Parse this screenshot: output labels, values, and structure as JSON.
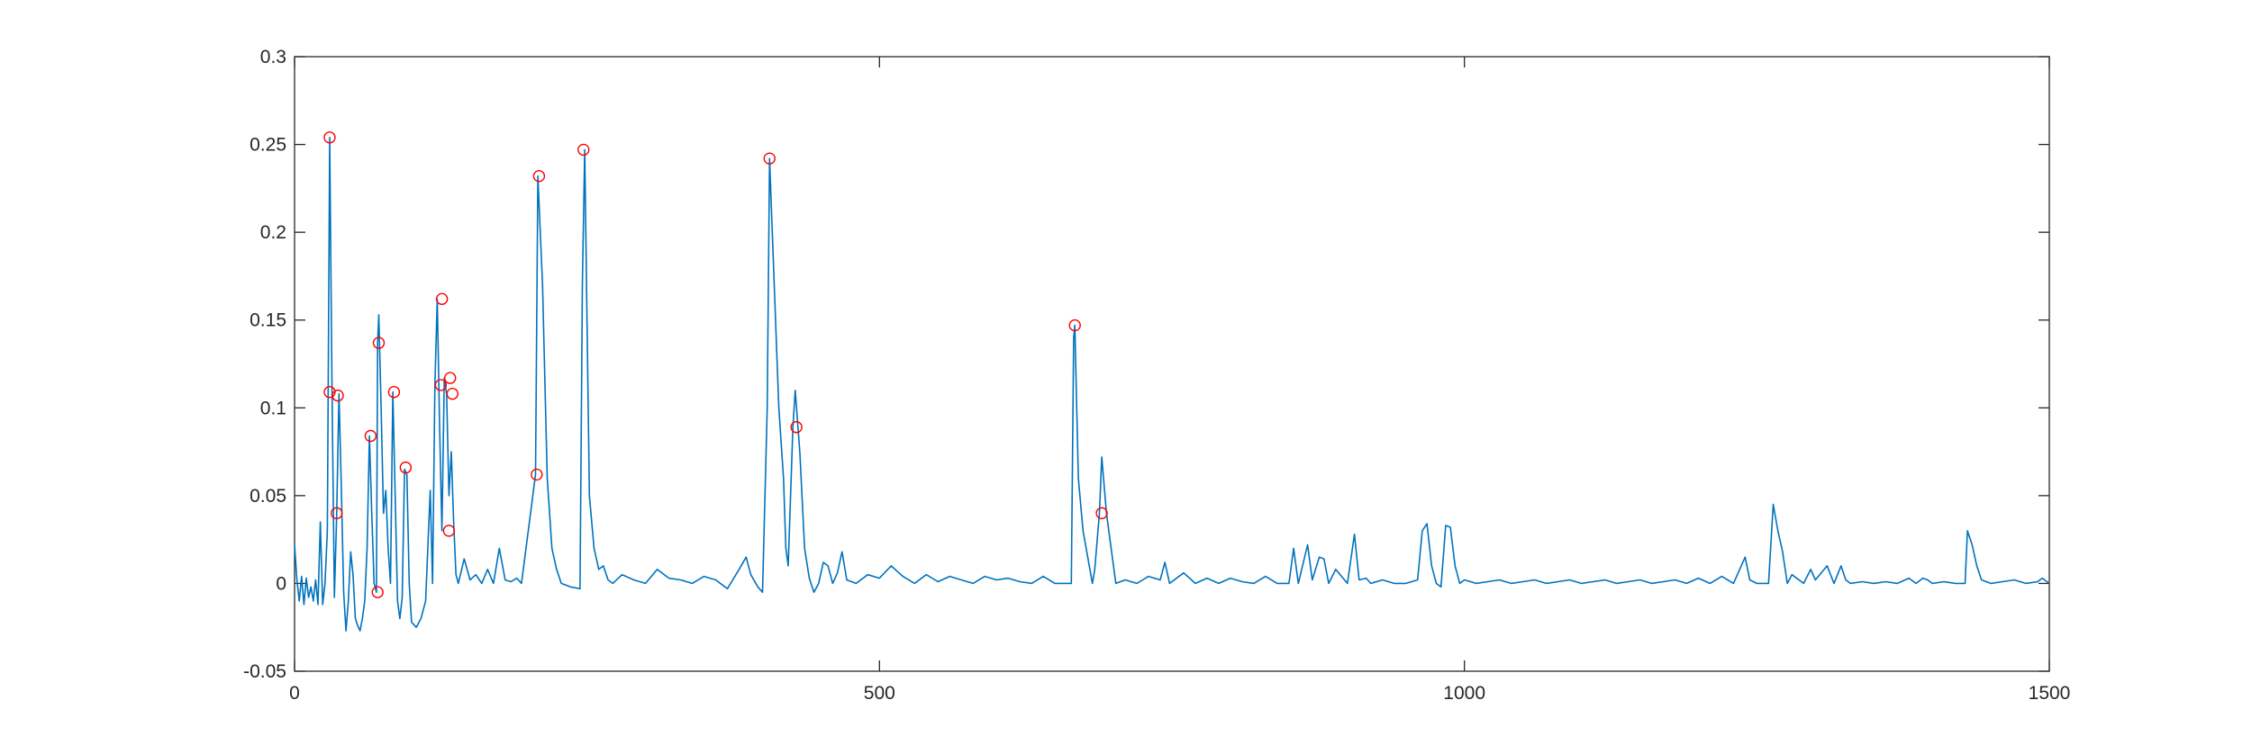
{
  "chart_data": {
    "type": "line",
    "title": "",
    "xlabel": "",
    "ylabel": "",
    "xlim": [
      0,
      1500
    ],
    "ylim": [
      -0.05,
      0.3
    ],
    "grid": false,
    "line_color": "#0072BD",
    "marker_color": "#FF0000",
    "x_ticks": [
      0,
      500,
      1000,
      1500
    ],
    "x_tick_labels": [
      "0",
      "500",
      "1000",
      "1500"
    ],
    "y_ticks": [
      -0.05,
      0,
      0.05,
      0.1,
      0.15,
      0.2,
      0.25,
      0.3
    ],
    "y_tick_labels": [
      "-0.05",
      "0",
      "0.05",
      "0.1",
      "0.15",
      "0.2",
      "0.25",
      "0.3"
    ],
    "series": [
      {
        "values": [
          [
            0,
            0.022
          ],
          [
            2,
            0.002
          ],
          [
            4,
            -0.01
          ],
          [
            6,
            0.004
          ],
          [
            8,
            -0.012
          ],
          [
            10,
            0.003
          ],
          [
            12,
            -0.008
          ],
          [
            14,
            -0.002
          ],
          [
            16,
            -0.01
          ],
          [
            18,
            0.002
          ],
          [
            20,
            -0.012
          ],
          [
            22,
            0.035
          ],
          [
            24,
            -0.012
          ],
          [
            26,
            0.0
          ],
          [
            28,
            0.03
          ],
          [
            30,
            0.254
          ],
          [
            32,
            0.11
          ],
          [
            34,
            -0.008
          ],
          [
            36,
            0.04
          ],
          [
            38,
            0.108
          ],
          [
            40,
            0.055
          ],
          [
            42,
            -0.005
          ],
          [
            44,
            -0.027
          ],
          [
            46,
            -0.01
          ],
          [
            48,
            0.018
          ],
          [
            50,
            0.005
          ],
          [
            52,
            -0.02
          ],
          [
            54,
            -0.024
          ],
          [
            56,
            -0.027
          ],
          [
            58,
            -0.02
          ],
          [
            60,
            -0.01
          ],
          [
            62,
            0.02
          ],
          [
            64,
            0.084
          ],
          [
            66,
            0.04
          ],
          [
            68,
            0.0
          ],
          [
            70,
            -0.005
          ],
          [
            71,
            0.137
          ],
          [
            72,
            0.153
          ],
          [
            74,
            0.1
          ],
          [
            76,
            0.04
          ],
          [
            78,
            0.053
          ],
          [
            80,
            0.02
          ],
          [
            82,
            0.0
          ],
          [
            84,
            0.109
          ],
          [
            86,
            0.05
          ],
          [
            88,
            -0.01
          ],
          [
            90,
            -0.02
          ],
          [
            92,
            -0.008
          ],
          [
            94,
            0.065
          ],
          [
            96,
            0.062
          ],
          [
            98,
            0.0
          ],
          [
            100,
            -0.022
          ],
          [
            104,
            -0.025
          ],
          [
            108,
            -0.02
          ],
          [
            112,
            -0.01
          ],
          [
            116,
            0.053
          ],
          [
            118,
            0.0
          ],
          [
            120,
            0.113
          ],
          [
            122,
            0.162
          ],
          [
            124,
            0.09
          ],
          [
            126,
            0.03
          ],
          [
            128,
            0.117
          ],
          [
            130,
            0.108
          ],
          [
            132,
            0.05
          ],
          [
            134,
            0.075
          ],
          [
            136,
            0.035
          ],
          [
            138,
            0.005
          ],
          [
            140,
            0.0
          ],
          [
            145,
            0.014
          ],
          [
            150,
            0.002
          ],
          [
            155,
            0.005
          ],
          [
            160,
            0.0
          ],
          [
            165,
            0.008
          ],
          [
            170,
            0.0
          ],
          [
            175,
            0.02
          ],
          [
            180,
            0.002
          ],
          [
            185,
            0.001
          ],
          [
            190,
            0.003
          ],
          [
            194,
            0.0
          ],
          [
            206,
            0.062
          ],
          [
            208,
            0.232
          ],
          [
            212,
            0.17
          ],
          [
            216,
            0.06
          ],
          [
            220,
            0.02
          ],
          [
            224,
            0.008
          ],
          [
            228,
            0.0
          ],
          [
            236,
            -0.002
          ],
          [
            244,
            -0.003
          ],
          [
            246,
            0.17
          ],
          [
            248,
            0.247
          ],
          [
            252,
            0.05
          ],
          [
            256,
            0.02
          ],
          [
            260,
            0.008
          ],
          [
            264,
            0.01
          ],
          [
            268,
            0.002
          ],
          [
            272,
            0.0
          ],
          [
            280,
            0.005
          ],
          [
            290,
            0.002
          ],
          [
            300,
            0.0
          ],
          [
            310,
            0.008
          ],
          [
            320,
            0.003
          ],
          [
            330,
            0.002
          ],
          [
            340,
            0.0
          ],
          [
            350,
            0.004
          ],
          [
            360,
            0.002
          ],
          [
            370,
            -0.003
          ],
          [
            380,
            0.008
          ],
          [
            386,
            0.015
          ],
          [
            390,
            0.005
          ],
          [
            396,
            -0.002
          ],
          [
            400,
            -0.005
          ],
          [
            404,
            0.1
          ],
          [
            406,
            0.242
          ],
          [
            410,
            0.17
          ],
          [
            414,
            0.1
          ],
          [
            418,
            0.06
          ],
          [
            420,
            0.02
          ],
          [
            422,
            0.01
          ],
          [
            426,
            0.089
          ],
          [
            428,
            0.11
          ],
          [
            432,
            0.074
          ],
          [
            436,
            0.02
          ],
          [
            440,
            0.003
          ],
          [
            444,
            -0.005
          ],
          [
            448,
            0.0
          ],
          [
            452,
            0.012
          ],
          [
            456,
            0.01
          ],
          [
            460,
            0.0
          ],
          [
            464,
            0.006
          ],
          [
            468,
            0.018
          ],
          [
            472,
            0.002
          ],
          [
            480,
            0.0
          ],
          [
            490,
            0.005
          ],
          [
            500,
            0.003
          ],
          [
            510,
            0.01
          ],
          [
            520,
            0.004
          ],
          [
            530,
            0.0
          ],
          [
            540,
            0.005
          ],
          [
            550,
            0.001
          ],
          [
            560,
            0.004
          ],
          [
            570,
            0.002
          ],
          [
            580,
            0.0
          ],
          [
            590,
            0.004
          ],
          [
            600,
            0.002
          ],
          [
            610,
            0.003
          ],
          [
            620,
            0.001
          ],
          [
            630,
            0.0
          ],
          [
            640,
            0.004
          ],
          [
            650,
            0.0
          ],
          [
            660,
            0.0
          ],
          [
            664,
            0.0
          ],
          [
            666,
            0.14
          ],
          [
            667,
            0.147
          ],
          [
            670,
            0.06
          ],
          [
            674,
            0.03
          ],
          [
            678,
            0.015
          ],
          [
            682,
            0.0
          ],
          [
            684,
            0.008
          ],
          [
            688,
            0.04
          ],
          [
            690,
            0.072
          ],
          [
            694,
            0.04
          ],
          [
            698,
            0.02
          ],
          [
            702,
            0.0
          ],
          [
            710,
            0.002
          ],
          [
            720,
            0.0
          ],
          [
            730,
            0.004
          ],
          [
            740,
            0.002
          ],
          [
            744,
            0.012
          ],
          [
            748,
            0.0
          ],
          [
            760,
            0.006
          ],
          [
            770,
            0.0
          ],
          [
            780,
            0.003
          ],
          [
            790,
            0.0
          ],
          [
            800,
            0.003
          ],
          [
            810,
            0.001
          ],
          [
            820,
            0.0
          ],
          [
            830,
            0.004
          ],
          [
            840,
            0.0
          ],
          [
            850,
            0.0
          ],
          [
            854,
            0.02
          ],
          [
            858,
            0.0
          ],
          [
            866,
            0.022
          ],
          [
            870,
            0.002
          ],
          [
            876,
            0.015
          ],
          [
            880,
            0.014
          ],
          [
            884,
            0.0
          ],
          [
            890,
            0.008
          ],
          [
            900,
            0.0
          ],
          [
            906,
            0.028
          ],
          [
            910,
            0.002
          ],
          [
            916,
            0.003
          ],
          [
            920,
            0.0
          ],
          [
            930,
            0.002
          ],
          [
            940,
            0.0
          ],
          [
            950,
            0.0
          ],
          [
            960,
            0.002
          ],
          [
            964,
            0.03
          ],
          [
            968,
            0.034
          ],
          [
            972,
            0.01
          ],
          [
            976,
            0.0
          ],
          [
            980,
            -0.002
          ],
          [
            984,
            0.033
          ],
          [
            988,
            0.032
          ],
          [
            992,
            0.01
          ],
          [
            996,
            0.0
          ],
          [
            1000,
            0.002
          ],
          [
            1010,
            0.0
          ],
          [
            1020,
            0.001
          ],
          [
            1030,
            0.002
          ],
          [
            1040,
            0.0
          ],
          [
            1050,
            0.001
          ],
          [
            1060,
            0.002
          ],
          [
            1070,
            0.0
          ],
          [
            1080,
            0.001
          ],
          [
            1090,
            0.002
          ],
          [
            1100,
            0.0
          ],
          [
            1110,
            0.001
          ],
          [
            1120,
            0.002
          ],
          [
            1130,
            0.0
          ],
          [
            1140,
            0.001
          ],
          [
            1150,
            0.002
          ],
          [
            1160,
            0.0
          ],
          [
            1170,
            0.001
          ],
          [
            1180,
            0.002
          ],
          [
            1190,
            0.0
          ],
          [
            1200,
            0.003
          ],
          [
            1210,
            0.0
          ],
          [
            1220,
            0.004
          ],
          [
            1230,
            0.0
          ],
          [
            1240,
            0.015
          ],
          [
            1244,
            0.002
          ],
          [
            1250,
            0.0
          ],
          [
            1260,
            0.0
          ],
          [
            1264,
            0.045
          ],
          [
            1268,
            0.03
          ],
          [
            1272,
            0.018
          ],
          [
            1276,
            0.0
          ],
          [
            1280,
            0.005
          ],
          [
            1290,
            0.0
          ],
          [
            1296,
            0.008
          ],
          [
            1300,
            0.002
          ],
          [
            1310,
            0.01
          ],
          [
            1316,
            0.0
          ],
          [
            1322,
            0.01
          ],
          [
            1326,
            0.002
          ],
          [
            1330,
            0.0
          ],
          [
            1340,
            0.001
          ],
          [
            1350,
            0.0
          ],
          [
            1360,
            0.001
          ],
          [
            1370,
            0.0
          ],
          [
            1380,
            0.003
          ],
          [
            1386,
            0.0
          ],
          [
            1392,
            0.003
          ],
          [
            1396,
            0.002
          ],
          [
            1400,
            0.0
          ],
          [
            1410,
            0.001
          ],
          [
            1420,
            0.0
          ],
          [
            1428,
            0.0
          ],
          [
            1430,
            0.03
          ],
          [
            1434,
            0.022
          ],
          [
            1438,
            0.01
          ],
          [
            1442,
            0.002
          ],
          [
            1450,
            0.0
          ],
          [
            1460,
            0.001
          ],
          [
            1470,
            0.002
          ],
          [
            1480,
            0.0
          ],
          [
            1490,
            0.001
          ],
          [
            1494,
            0.003
          ],
          [
            1500,
            0.0
          ]
        ]
      }
    ],
    "peaks": [
      [
        30,
        0.254
      ],
      [
        30,
        0.109
      ],
      [
        36,
        0.04
      ],
      [
        37,
        0.107
      ],
      [
        65,
        0.084
      ],
      [
        71,
        -0.005
      ],
      [
        72,
        0.137
      ],
      [
        85,
        0.109
      ],
      [
        95,
        0.066
      ],
      [
        125,
        0.113
      ],
      [
        126,
        0.162
      ],
      [
        132,
        0.03
      ],
      [
        133,
        0.117
      ],
      [
        135,
        0.108
      ],
      [
        207,
        0.062
      ],
      [
        209,
        0.232
      ],
      [
        247,
        0.247
      ],
      [
        406,
        0.242
      ],
      [
        429,
        0.089
      ],
      [
        667,
        0.147
      ],
      [
        690,
        0.04
      ]
    ]
  }
}
